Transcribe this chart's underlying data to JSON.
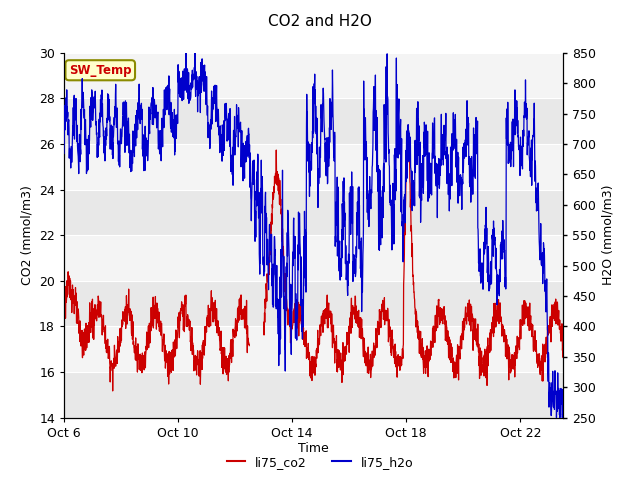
{
  "title": "CO2 and H2O",
  "xlabel": "Time",
  "ylabel_left": "CO2 (mmol/m3)",
  "ylabel_right": "H2O (mmol/m3)",
  "ylim_left": [
    14,
    30
  ],
  "ylim_right": [
    250,
    850
  ],
  "yticks_left": [
    14,
    16,
    18,
    20,
    22,
    24,
    26,
    28,
    30
  ],
  "yticks_right": [
    250,
    300,
    350,
    400,
    450,
    500,
    550,
    600,
    650,
    700,
    750,
    800,
    850
  ],
  "xtick_labels": [
    "Oct 6",
    "Oct 10",
    "Oct 14",
    "Oct 18",
    "Oct 22"
  ],
  "xtick_positions": [
    0,
    4,
    8,
    12,
    16
  ],
  "xlim": [
    0,
    17.5
  ],
  "co2_color": "#cc0000",
  "h2o_color": "#0000cc",
  "fig_bg_color": "#ffffff",
  "plot_bg_color": "#e8e8e8",
  "plot_bg_light": "#f4f4f4",
  "sw_temp_box_color": "#ffffcc",
  "sw_temp_text_color": "#cc0000",
  "sw_temp_edge_color": "#8b8b00",
  "legend_co2_label": "li75_co2",
  "legend_h2o_label": "li75_h2o",
  "grid_color": "#ffffff",
  "title_fontsize": 11,
  "label_fontsize": 9,
  "tick_fontsize": 9
}
